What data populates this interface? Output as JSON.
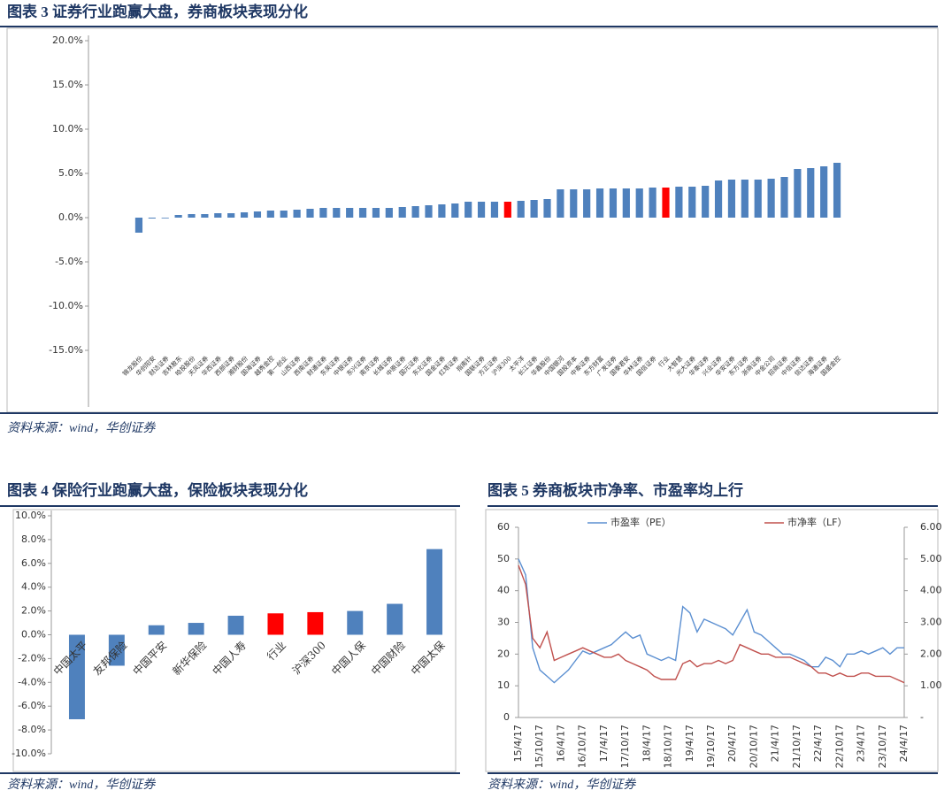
{
  "chart_data": [
    {
      "type": "bar",
      "title": "图表 3 证券行业跑赢大盘，券商板块表现分化",
      "source": "资料来源：wind，华创证券",
      "categories": [
        "锦龙股份",
        "华创阳安",
        "财达证券",
        "吉林敖东",
        "哈投股份",
        "天风证券",
        "华西证券",
        "西部证券",
        "湘财股份",
        "国海证券",
        "越秀金控",
        "第一创业",
        "山西证券",
        "西南证券",
        "财通证券",
        "东吴证券",
        "中银证券",
        "东兴证券",
        "南京证券",
        "长城证券",
        "中原证券",
        "国元证券",
        "东北证券",
        "国金证券",
        "红塔证券",
        "指南针",
        "国联证券",
        "方正证券",
        "沪深300",
        "太平洋",
        "长江证券",
        "华鑫股份",
        "中国银河",
        "国投资本",
        "中泰证券",
        "东方财富",
        "广发证券",
        "国泰君安",
        "华林证券",
        "国信证券",
        "行业",
        "大智慧",
        "光大证券",
        "华泰证券",
        "兴业证券",
        "华安证券",
        "东方证券",
        "浙商证券",
        "中金公司",
        "招商证券",
        "中信证券",
        "信达证券",
        "海通证券",
        "国盛金控"
      ],
      "values": [
        -1.7,
        -0.1,
        0.0,
        0.3,
        0.4,
        0.4,
        0.5,
        0.5,
        0.6,
        0.7,
        0.8,
        0.8,
        0.9,
        1.0,
        1.1,
        1.1,
        1.1,
        1.1,
        1.1,
        1.1,
        1.2,
        1.3,
        1.4,
        1.5,
        1.6,
        1.8,
        1.8,
        1.8,
        1.8,
        1.9,
        2.0,
        2.1,
        3.2,
        3.2,
        3.2,
        3.3,
        3.3,
        3.3,
        3.3,
        3.4,
        3.4,
        3.5,
        3.5,
        3.6,
        4.2,
        4.3,
        4.3,
        4.3,
        4.4,
        4.6,
        5.5,
        5.6,
        5.8,
        6.2
      ],
      "colors": [
        "#4f81bd",
        "#4f81bd",
        "#4f81bd",
        "#4f81bd",
        "#4f81bd",
        "#4f81bd",
        "#4f81bd",
        "#4f81bd",
        "#4f81bd",
        "#4f81bd",
        "#4f81bd",
        "#4f81bd",
        "#4f81bd",
        "#4f81bd",
        "#4f81bd",
        "#4f81bd",
        "#4f81bd",
        "#4f81bd",
        "#4f81bd",
        "#4f81bd",
        "#4f81bd",
        "#4f81bd",
        "#4f81bd",
        "#4f81bd",
        "#4f81bd",
        "#4f81bd",
        "#4f81bd",
        "#4f81bd",
        "#ff0000",
        "#4f81bd",
        "#4f81bd",
        "#4f81bd",
        "#4f81bd",
        "#4f81bd",
        "#4f81bd",
        "#4f81bd",
        "#4f81bd",
        "#4f81bd",
        "#4f81bd",
        "#4f81bd",
        "#ff0000",
        "#4f81bd",
        "#4f81bd",
        "#4f81bd",
        "#4f81bd",
        "#4f81bd",
        "#4f81bd",
        "#4f81bd",
        "#4f81bd",
        "#4f81bd",
        "#4f81bd",
        "#4f81bd",
        "#4f81bd",
        "#4f81bd"
      ],
      "ylim": [
        -15,
        20
      ],
      "yticks": [
        {
          "value": 20,
          "label": "20.0%"
        },
        {
          "value": 15,
          "label": "15.0%"
        },
        {
          "value": 10,
          "label": "10.0%"
        },
        {
          "value": 5,
          "label": "5.0%"
        },
        {
          "value": 0,
          "label": "0.0%"
        },
        {
          "value": -5,
          "label": "-5.0%"
        },
        {
          "value": -10,
          "label": "-10.0%"
        },
        {
          "value": -15,
          "label": "-15.0%"
        }
      ]
    },
    {
      "type": "bar",
      "title": "图表 4 保险行业跑赢大盘，保险板块表现分化",
      "source": "资料来源：wind，华创证券",
      "categories": [
        "中国太平",
        "友邦保险",
        "中国平安",
        "新华保险",
        "中国人寿",
        "行业",
        "沪深300",
        "中国人保",
        "中国财险",
        "中国太保"
      ],
      "values": [
        -7.1,
        -2.6,
        0.8,
        1.0,
        1.6,
        1.8,
        1.9,
        2.0,
        2.6,
        7.2
      ],
      "colors": [
        "#4f81bd",
        "#4f81bd",
        "#4f81bd",
        "#4f81bd",
        "#4f81bd",
        "#ff0000",
        "#ff0000",
        "#4f81bd",
        "#4f81bd",
        "#4f81bd"
      ],
      "ylim": [
        -10,
        10
      ],
      "yticks": [
        {
          "value": 10,
          "label": "10.0%"
        },
        {
          "value": 8,
          "label": "8.0%"
        },
        {
          "value": 6,
          "label": "6.0%"
        },
        {
          "value": 4,
          "label": "4.0%"
        },
        {
          "value": 2,
          "label": "2.0%"
        },
        {
          "value": 0,
          "label": "0.0%"
        },
        {
          "value": -2,
          "label": "-2.0%"
        },
        {
          "value": -4,
          "label": "-4.0%"
        },
        {
          "value": -6,
          "label": "-6.0%"
        },
        {
          "value": -8,
          "label": "-8.0%"
        },
        {
          "value": -10,
          "label": "-10.0%"
        }
      ]
    },
    {
      "type": "line",
      "title": "图表 5 券商板块市净率、市盈率均上行",
      "source": "资料来源：wind，华创证券",
      "x": [
        "15/4/17",
        null,
        null,
        "15/10/17",
        null,
        null,
        "16/4/17",
        null,
        null,
        "16/10/17",
        null,
        null,
        "17/4/17",
        null,
        null,
        "17/10/17",
        null,
        null,
        "18/4/17",
        null,
        null,
        "18/10/17",
        null,
        null,
        "19/4/17",
        null,
        null,
        "19/10/17",
        null,
        null,
        "20/4/17",
        null,
        null,
        "20/10/17",
        null,
        null,
        "21/4/17",
        null,
        null,
        "21/10/17",
        null,
        null,
        "22/4/17",
        null,
        null,
        "22/10/17",
        null,
        null,
        "23/4/17",
        null,
        null,
        "23/10/17",
        null,
        null,
        "24/4/17"
      ],
      "series": [
        {
          "name": "市盈率（PE）",
          "color": "#5b8fd1",
          "values": [
            50,
            45,
            22,
            15,
            13,
            11,
            13,
            15,
            18,
            21,
            20,
            21,
            22,
            23,
            25,
            27,
            25,
            26,
            20,
            19,
            18,
            19,
            18,
            35,
            33,
            27,
            31,
            30,
            29,
            28,
            26,
            30,
            34,
            27,
            26,
            24,
            22,
            20,
            20,
            19,
            18,
            16,
            16,
            19,
            18,
            16,
            20,
            20,
            21,
            20,
            21,
            22,
            20,
            22,
            22
          ]
        },
        {
          "name": "市净率（LF）",
          "color": "#c0504d",
          "axis": "y2",
          "values": [
            4.8,
            4.2,
            2.5,
            2.2,
            2.7,
            1.8,
            1.9,
            2.0,
            2.1,
            2.2,
            2.1,
            2.0,
            1.9,
            1.9,
            2.0,
            1.8,
            1.7,
            1.6,
            1.5,
            1.3,
            1.2,
            1.2,
            1.2,
            1.7,
            1.8,
            1.6,
            1.7,
            1.7,
            1.8,
            1.7,
            1.8,
            2.3,
            2.2,
            2.1,
            2.0,
            2.0,
            1.9,
            1.9,
            1.9,
            1.8,
            1.7,
            1.6,
            1.4,
            1.4,
            1.3,
            1.4,
            1.3,
            1.3,
            1.4,
            1.4,
            1.3,
            1.3,
            1.3,
            1.2,
            1.1
          ]
        }
      ],
      "ylim": [
        0,
        60
      ],
      "yticks": [
        0,
        10,
        20,
        30,
        40,
        50,
        60
      ],
      "y2lim": [
        0,
        6
      ],
      "y2ticks": [
        {
          "value": 0,
          "label": "-"
        },
        {
          "value": 1,
          "label": "1.00"
        },
        {
          "value": 2,
          "label": "2.00"
        },
        {
          "value": 3,
          "label": "3.00"
        },
        {
          "value": 4,
          "label": "4.00"
        },
        {
          "value": 5,
          "label": "5.00"
        },
        {
          "value": 6,
          "label": "6.00"
        }
      ]
    }
  ]
}
